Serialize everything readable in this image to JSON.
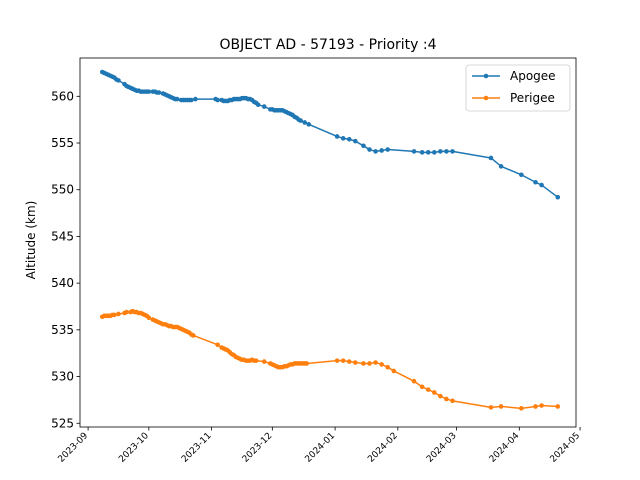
{
  "chart_data": {
    "type": "line",
    "title": "OBJECT AD - 57193 - Priority :4",
    "xlabel": "",
    "ylabel": "Altitude (km)",
    "x_ticks": [
      "2023-09",
      "2023-10",
      "2023-11",
      "2023-12",
      "2024-01",
      "2024-02",
      "2024-03",
      "2024-04",
      "2024-05"
    ],
    "y_ticks": [
      525,
      530,
      535,
      540,
      545,
      550,
      555,
      560
    ],
    "xlim": [
      "2023-08-28",
      "2024-04-29"
    ],
    "ylim": [
      524.6,
      564.1
    ],
    "grid": false,
    "legend_position": "top-right",
    "series": [
      {
        "name": "Apogee",
        "color": "#1f77b4",
        "points": [
          [
            "2023-09-08",
            562.6
          ],
          [
            "2023-09-09",
            562.5
          ],
          [
            "2023-09-10",
            562.4
          ],
          [
            "2023-09-11",
            562.3
          ],
          [
            "2023-09-12",
            562.2
          ],
          [
            "2023-09-13",
            562.1
          ],
          [
            "2023-09-14",
            562.0
          ],
          [
            "2023-09-15",
            561.8
          ],
          [
            "2023-09-16",
            561.7
          ],
          [
            "2023-09-19",
            561.3
          ],
          [
            "2023-09-20",
            561.1
          ],
          [
            "2023-09-21",
            561.0
          ],
          [
            "2023-09-22",
            560.9
          ],
          [
            "2023-09-23",
            560.8
          ],
          [
            "2023-09-24",
            560.7
          ],
          [
            "2023-09-25",
            560.6
          ],
          [
            "2023-09-26",
            560.6
          ],
          [
            "2023-09-27",
            560.5
          ],
          [
            "2023-09-28",
            560.5
          ],
          [
            "2023-09-29",
            560.5
          ],
          [
            "2023-09-30",
            560.5
          ],
          [
            "2023-10-01",
            560.5
          ],
          [
            "2023-10-03",
            560.5
          ],
          [
            "2023-10-04",
            560.5
          ],
          [
            "2023-10-05",
            560.4
          ],
          [
            "2023-10-06",
            560.4
          ],
          [
            "2023-10-08",
            560.3
          ],
          [
            "2023-10-09",
            560.2
          ],
          [
            "2023-10-10",
            560.1
          ],
          [
            "2023-10-11",
            560.0
          ],
          [
            "2023-10-12",
            559.9
          ],
          [
            "2023-10-13",
            559.8
          ],
          [
            "2023-10-14",
            559.7
          ],
          [
            "2023-10-15",
            559.7
          ],
          [
            "2023-10-17",
            559.6
          ],
          [
            "2023-10-18",
            559.6
          ],
          [
            "2023-10-19",
            559.6
          ],
          [
            "2023-10-20",
            559.6
          ],
          [
            "2023-10-21",
            559.6
          ],
          [
            "2023-10-22",
            559.6
          ],
          [
            "2023-10-24",
            559.7
          ],
          [
            "2023-11-03",
            559.7
          ],
          [
            "2023-11-04",
            559.6
          ],
          [
            "2023-11-06",
            559.6
          ],
          [
            "2023-11-07",
            559.5
          ],
          [
            "2023-11-08",
            559.5
          ],
          [
            "2023-11-09",
            559.5
          ],
          [
            "2023-11-10",
            559.6
          ],
          [
            "2023-11-11",
            559.6
          ],
          [
            "2023-11-12",
            559.7
          ],
          [
            "2023-11-13",
            559.7
          ],
          [
            "2023-11-14",
            559.7
          ],
          [
            "2023-11-15",
            559.7
          ],
          [
            "2023-11-16",
            559.8
          ],
          [
            "2023-11-17",
            559.8
          ],
          [
            "2023-11-18",
            559.8
          ],
          [
            "2023-11-19",
            559.7
          ],
          [
            "2023-11-20",
            559.7
          ],
          [
            "2023-11-21",
            559.6
          ],
          [
            "2023-11-22",
            559.4
          ],
          [
            "2023-11-23",
            559.3
          ],
          [
            "2023-11-24",
            559.1
          ],
          [
            "2023-11-27",
            558.9
          ],
          [
            "2023-11-30",
            558.6
          ],
          [
            "2023-12-01",
            558.6
          ],
          [
            "2023-12-02",
            558.5
          ],
          [
            "2023-12-03",
            558.5
          ],
          [
            "2023-12-04",
            558.5
          ],
          [
            "2023-12-05",
            558.5
          ],
          [
            "2023-12-06",
            558.5
          ],
          [
            "2023-12-07",
            558.4
          ],
          [
            "2023-12-08",
            558.3
          ],
          [
            "2023-12-09",
            558.2
          ],
          [
            "2023-12-10",
            558.1
          ],
          [
            "2023-12-11",
            558.0
          ],
          [
            "2023-12-12",
            557.8
          ],
          [
            "2023-12-13",
            557.7
          ],
          [
            "2023-12-14",
            557.5
          ],
          [
            "2023-12-15",
            557.4
          ],
          [
            "2023-12-17",
            557.2
          ],
          [
            "2023-12-19",
            557.0
          ],
          [
            "2024-01-02",
            555.7
          ],
          [
            "2024-01-05",
            555.5
          ],
          [
            "2024-01-08",
            555.4
          ],
          [
            "2024-01-11",
            555.2
          ],
          [
            "2024-01-15",
            554.7
          ],
          [
            "2024-01-18",
            554.3
          ],
          [
            "2024-01-21",
            554.1
          ],
          [
            "2024-01-24",
            554.2
          ],
          [
            "2024-01-27",
            554.3
          ],
          [
            "2024-02-09",
            554.1
          ],
          [
            "2024-02-13",
            554.0
          ],
          [
            "2024-02-16",
            554.0
          ],
          [
            "2024-02-19",
            554.0
          ],
          [
            "2024-02-22",
            554.1
          ],
          [
            "2024-02-25",
            554.1
          ],
          [
            "2024-02-28",
            554.1
          ],
          [
            "2024-03-18",
            553.4
          ],
          [
            "2024-03-23",
            552.5
          ],
          [
            "2024-04-02",
            551.6
          ],
          [
            "2024-04-09",
            550.8
          ],
          [
            "2024-04-12",
            550.5
          ],
          [
            "2024-04-20",
            549.2
          ]
        ]
      },
      {
        "name": "Perigee",
        "color": "#ff7f0e",
        "points": [
          [
            "2023-09-08",
            536.4
          ],
          [
            "2023-09-09",
            536.5
          ],
          [
            "2023-09-10",
            536.5
          ],
          [
            "2023-09-11",
            536.5
          ],
          [
            "2023-09-12",
            536.5
          ],
          [
            "2023-09-13",
            536.6
          ],
          [
            "2023-09-14",
            536.6
          ],
          [
            "2023-09-16",
            536.7
          ],
          [
            "2023-09-19",
            536.8
          ],
          [
            "2023-09-20",
            536.9
          ],
          [
            "2023-09-22",
            536.9
          ],
          [
            "2023-09-23",
            537.0
          ],
          [
            "2023-09-24",
            536.9
          ],
          [
            "2023-09-25",
            536.9
          ],
          [
            "2023-09-26",
            536.8
          ],
          [
            "2023-09-27",
            536.8
          ],
          [
            "2023-09-28",
            536.7
          ],
          [
            "2023-09-29",
            536.6
          ],
          [
            "2023-09-30",
            536.5
          ],
          [
            "2023-10-01",
            536.3
          ],
          [
            "2023-10-03",
            536.1
          ],
          [
            "2023-10-04",
            536.0
          ],
          [
            "2023-10-05",
            535.9
          ],
          [
            "2023-10-06",
            535.8
          ],
          [
            "2023-10-07",
            535.7
          ],
          [
            "2023-10-08",
            535.6
          ],
          [
            "2023-10-09",
            535.6
          ],
          [
            "2023-10-10",
            535.5
          ],
          [
            "2023-10-11",
            535.4
          ],
          [
            "2023-10-12",
            535.4
          ],
          [
            "2023-10-13",
            535.3
          ],
          [
            "2023-10-14",
            535.3
          ],
          [
            "2023-10-15",
            535.3
          ],
          [
            "2023-10-16",
            535.2
          ],
          [
            "2023-10-17",
            535.1
          ],
          [
            "2023-10-18",
            535.0
          ],
          [
            "2023-10-19",
            534.9
          ],
          [
            "2023-10-20",
            534.8
          ],
          [
            "2023-10-21",
            534.7
          ],
          [
            "2023-10-22",
            534.5
          ],
          [
            "2023-10-23",
            534.4
          ],
          [
            "2023-11-04",
            533.4
          ],
          [
            "2023-11-06",
            533.1
          ],
          [
            "2023-11-07",
            533.0
          ],
          [
            "2023-11-08",
            532.9
          ],
          [
            "2023-11-09",
            532.8
          ],
          [
            "2023-11-10",
            532.6
          ],
          [
            "2023-11-11",
            532.4
          ],
          [
            "2023-11-12",
            532.3
          ],
          [
            "2023-11-13",
            532.1
          ],
          [
            "2023-11-14",
            532.0
          ],
          [
            "2023-11-15",
            531.9
          ],
          [
            "2023-11-16",
            531.8
          ],
          [
            "2023-11-17",
            531.8
          ],
          [
            "2023-11-18",
            531.7
          ],
          [
            "2023-11-19",
            531.7
          ],
          [
            "2023-11-20",
            531.7
          ],
          [
            "2023-11-21",
            531.8
          ],
          [
            "2023-11-22",
            531.7
          ],
          [
            "2023-11-23",
            531.7
          ],
          [
            "2023-11-27",
            531.6
          ],
          [
            "2023-11-30",
            531.4
          ],
          [
            "2023-12-01",
            531.3
          ],
          [
            "2023-12-02",
            531.2
          ],
          [
            "2023-12-03",
            531.1
          ],
          [
            "2023-12-04",
            531.0
          ],
          [
            "2023-12-05",
            531.0
          ],
          [
            "2023-12-06",
            531.0
          ],
          [
            "2023-12-07",
            531.1
          ],
          [
            "2023-12-08",
            531.1
          ],
          [
            "2023-12-09",
            531.2
          ],
          [
            "2023-12-10",
            531.3
          ],
          [
            "2023-12-11",
            531.3
          ],
          [
            "2023-12-12",
            531.4
          ],
          [
            "2023-12-13",
            531.4
          ],
          [
            "2023-12-14",
            531.4
          ],
          [
            "2023-12-15",
            531.4
          ],
          [
            "2023-12-16",
            531.4
          ],
          [
            "2023-12-17",
            531.4
          ],
          [
            "2023-12-18",
            531.4
          ],
          [
            "2024-01-02",
            531.7
          ],
          [
            "2024-01-05",
            531.7
          ],
          [
            "2024-01-08",
            531.6
          ],
          [
            "2024-01-11",
            531.5
          ],
          [
            "2024-01-15",
            531.4
          ],
          [
            "2024-01-18",
            531.4
          ],
          [
            "2024-01-21",
            531.5
          ],
          [
            "2024-01-24",
            531.3
          ],
          [
            "2024-01-27",
            531.0
          ],
          [
            "2024-01-30",
            530.6
          ],
          [
            "2024-02-09",
            529.5
          ],
          [
            "2024-02-13",
            528.9
          ],
          [
            "2024-02-16",
            528.6
          ],
          [
            "2024-02-19",
            528.3
          ],
          [
            "2024-02-22",
            527.9
          ],
          [
            "2024-02-25",
            527.6
          ],
          [
            "2024-02-28",
            527.4
          ],
          [
            "2024-03-18",
            526.7
          ],
          [
            "2024-03-23",
            526.8
          ],
          [
            "2024-04-02",
            526.6
          ],
          [
            "2024-04-09",
            526.8
          ],
          [
            "2024-04-12",
            526.9
          ],
          [
            "2024-04-20",
            526.8
          ]
        ]
      }
    ]
  }
}
